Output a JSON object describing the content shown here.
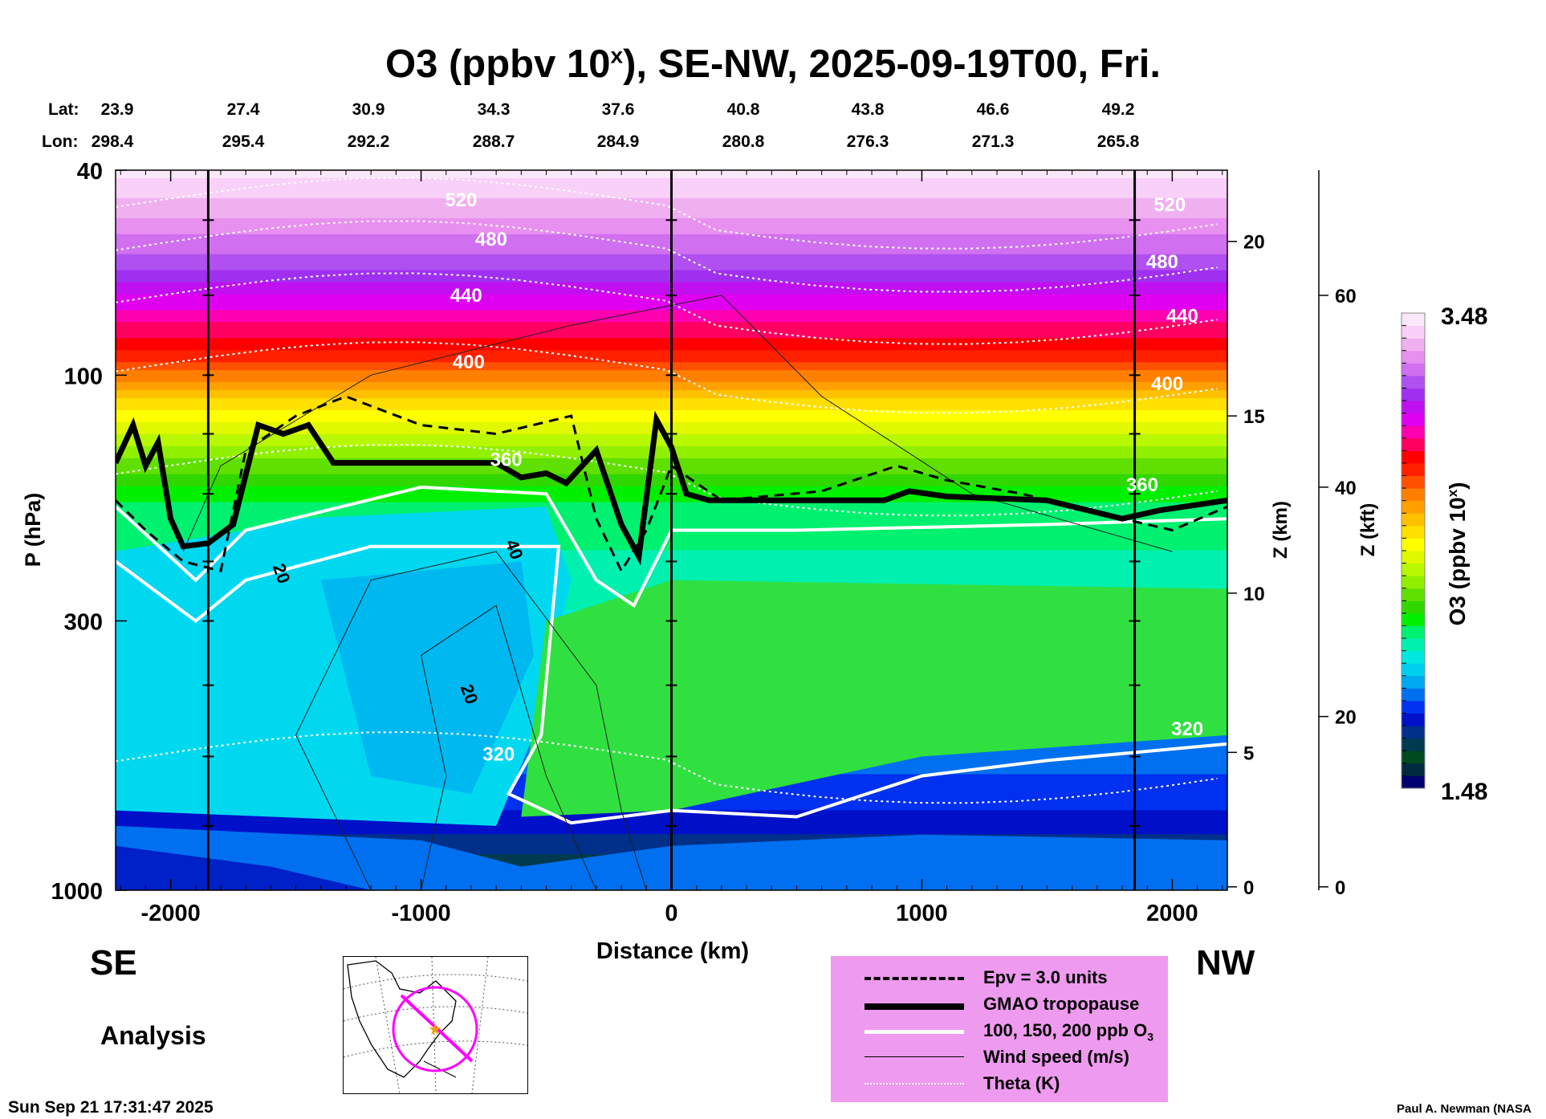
{
  "title_main": "O3 (ppbv 10",
  "title_sup": "x",
  "title_rest": "), SE-NW, 2025-09-19T00, Fri.",
  "lat_label": "Lat:",
  "lon_label": "Lon:",
  "lats": [
    "23.9",
    "27.4",
    "30.9",
    "34.3",
    "37.6",
    "40.8",
    "43.8",
    "46.6",
    "49.2"
  ],
  "lons": [
    "298.4",
    "295.4",
    "292.2",
    "288.7",
    "284.9",
    "280.8",
    "276.3",
    "271.3",
    "265.8"
  ],
  "dir_left": "SE",
  "dir_right": "NW",
  "analysis": "Analysis",
  "timestamp": "Sun Sep 21 17:31:47 2025",
  "credit": "Paul A. Newman (NASA",
  "legend": [
    {
      "label": "Epv = 3.0 units",
      "style": "dashed"
    },
    {
      "label": "GMAO tropopause",
      "style": "thick"
    },
    {
      "label": "100, 150, 200 ppb O",
      "sub": "3",
      "style": "white"
    },
    {
      "label": "Wind speed (m/s)",
      "style": "thin"
    },
    {
      "label": "Theta (K)",
      "style": "dotted"
    }
  ],
  "chart_data": {
    "type": "heatmap",
    "title": "O3 (ppbv 10^x), SE-NW, 2025-09-19T00, Fri.",
    "xlabel": "Distance (km)",
    "ylabel": "P (hPa)",
    "y2label": "Z (km)",
    "y3label": "Z (kft)",
    "xlim": [
      -2220,
      2220
    ],
    "ylim": [
      1000,
      40
    ],
    "yscale": "log",
    "xticks": [
      -2000,
      -1000,
      0,
      1000,
      2000
    ],
    "xtick_labels": [
      "-2000",
      "-1000",
      "0",
      "1000",
      "2000"
    ],
    "yticks": [
      40,
      100,
      300,
      1000
    ],
    "ytick_labels": [
      "40",
      "100",
      "300",
      "1000"
    ],
    "zkm_ticks": [
      {
        "v": 20,
        "p": 55
      },
      {
        "v": 15,
        "p": 120
      },
      {
        "v": 10,
        "p": 265
      },
      {
        "v": 5,
        "p": 540
      },
      {
        "v": 0,
        "p": 985
      }
    ],
    "zkm_labels": [
      "20",
      "15",
      "10",
      "5",
      "0"
    ],
    "zkft_ticks": [
      {
        "v": 60,
        "p": 70
      },
      {
        "v": 40,
        "p": 165
      },
      {
        "v": 20,
        "p": 460
      },
      {
        "v": 0,
        "p": 985
      }
    ],
    "zkft_labels": [
      "60",
      "40",
      "20",
      "0"
    ],
    "vertical_markers_km": [
      -1850,
      0,
      1850
    ],
    "colorbar": {
      "label": "O3 (ppbv 10^x)",
      "min": 1.48,
      "max": 3.48,
      "min_label": "1.48",
      "max_label": "3.48",
      "colors": [
        "#000070",
        "#002a40",
        "#004a20",
        "#003a50",
        "#00308a",
        "#0010c8",
        "#0030f0",
        "#0070f0",
        "#00a8f0",
        "#00d0f0",
        "#00e8e0",
        "#00f0b0",
        "#00f070",
        "#00f000",
        "#30d800",
        "#60e000",
        "#90f000",
        "#b8f800",
        "#e0f800",
        "#ffff00",
        "#ffe000",
        "#ffc000",
        "#ffa000",
        "#ff8000",
        "#ff5000",
        "#ff2000",
        "#ff0000",
        "#ff0060",
        "#ff00b0",
        "#e000f0",
        "#c010f0",
        "#a030f0",
        "#b050f0",
        "#d070f0",
        "#e890f0",
        "#f0b0f0",
        "#f8d0f8",
        "#fae8fa"
      ]
    },
    "field_profile": [
      {
        "p": 40,
        "o3": 3.45
      },
      {
        "p": 60,
        "o3": 3.2
      },
      {
        "p": 75,
        "o3": 3.0
      },
      {
        "p": 90,
        "o3": 2.85
      },
      {
        "p": 110,
        "o3": 2.6
      },
      {
        "p": 140,
        "o3": 2.35
      },
      {
        "p": 180,
        "o3": 2.15
      },
      {
        "p": 300,
        "o3": 2.05
      },
      {
        "p": 500,
        "o3": 1.9
      },
      {
        "p": 700,
        "o3": 1.8
      },
      {
        "p": 1000,
        "o3": 1.6
      }
    ],
    "tropopause": [
      [
        -2220,
        148
      ],
      [
        -2150,
        125
      ],
      [
        -2100,
        150
      ],
      [
        -2050,
        135
      ],
      [
        -2000,
        190
      ],
      [
        -1950,
        215
      ],
      [
        -1850,
        212
      ],
      [
        -1750,
        195
      ],
      [
        -1650,
        125
      ],
      [
        -1550,
        130
      ],
      [
        -1450,
        125
      ],
      [
        -1350,
        148
      ],
      [
        -1000,
        148
      ],
      [
        -700,
        148
      ],
      [
        -600,
        158
      ],
      [
        -500,
        155
      ],
      [
        -420,
        162
      ],
      [
        -300,
        140
      ],
      [
        -200,
        195
      ],
      [
        -130,
        225
      ],
      [
        -60,
        122
      ],
      [
        0,
        138
      ],
      [
        60,
        170
      ],
      [
        150,
        175
      ],
      [
        500,
        175
      ],
      [
        850,
        175
      ],
      [
        950,
        168
      ],
      [
        1100,
        172
      ],
      [
        1500,
        175
      ],
      [
        1800,
        190
      ],
      [
        1950,
        183
      ],
      [
        2220,
        175
      ]
    ],
    "epv": [
      [
        -2220,
        175
      ],
      [
        -2100,
        200
      ],
      [
        -1950,
        230
      ],
      [
        -1800,
        240
      ],
      [
        -1700,
        140
      ],
      [
        -1500,
        120
      ],
      [
        -1300,
        110
      ],
      [
        -1000,
        125
      ],
      [
        -700,
        130
      ],
      [
        -400,
        120
      ],
      [
        -300,
        190
      ],
      [
        -200,
        240
      ],
      [
        -100,
        200
      ],
      [
        0,
        150
      ],
      [
        200,
        175
      ],
      [
        600,
        168
      ],
      [
        900,
        150
      ],
      [
        1100,
        160
      ],
      [
        1400,
        170
      ],
      [
        1700,
        185
      ],
      [
        2000,
        200
      ],
      [
        2220,
        180
      ]
    ],
    "theta_labels": [
      {
        "text": "520",
        "km": -840,
        "p": 47
      },
      {
        "text": "480",
        "km": -720,
        "p": 56
      },
      {
        "text": "440",
        "km": -820,
        "p": 72
      },
      {
        "text": "400",
        "km": -810,
        "p": 97
      },
      {
        "text": "360",
        "km": -660,
        "p": 150
      },
      {
        "text": "320",
        "km": -690,
        "p": 560
      },
      {
        "text": "520",
        "km": 1990,
        "p": 48
      },
      {
        "text": "480",
        "km": 1960,
        "p": 62
      },
      {
        "text": "440",
        "km": 2040,
        "p": 79
      },
      {
        "text": "400",
        "km": 1980,
        "p": 107
      },
      {
        "text": "360",
        "km": 1880,
        "p": 168
      },
      {
        "text": "320",
        "km": 2060,
        "p": 500
      }
    ],
    "theta_levels": [
      {
        "v": 520,
        "p": 47
      },
      {
        "v": 480,
        "p": 57
      },
      {
        "v": 440,
        "p": 72
      },
      {
        "v": 400,
        "p": 98
      },
      {
        "v": 360,
        "p": 155
      },
      {
        "v": 320,
        "p": 560
      }
    ],
    "wind_labels": [
      {
        "text": "20",
        "km": -1580,
        "p": 245
      },
      {
        "text": "40",
        "km": -650,
        "p": 220
      },
      {
        "text": "20",
        "km": -830,
        "p": 420
      }
    ]
  }
}
